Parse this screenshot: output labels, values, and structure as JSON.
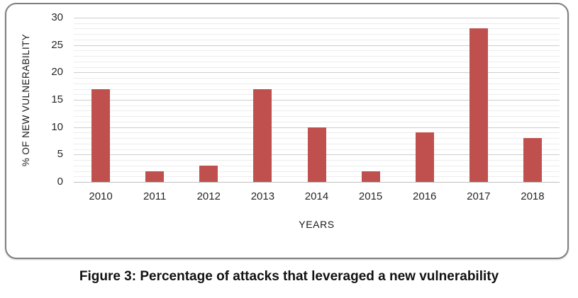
{
  "figure": {
    "caption": "Figure 3: Percentage of attacks that leveraged a new vulnerability"
  },
  "chart_data": {
    "type": "bar",
    "title": "",
    "categories": [
      "2010",
      "2011",
      "2012",
      "2013",
      "2014",
      "2015",
      "2016",
      "2017",
      "2018"
    ],
    "values": [
      17,
      2,
      3,
      17,
      10,
      2,
      9,
      28,
      8
    ],
    "xlabel": "YEARS",
    "ylabel": "% OF NEW VULNERABILITY",
    "ylim": [
      0,
      30
    ],
    "ytick_step": 5,
    "yticks": [
      0,
      5,
      10,
      15,
      20,
      25,
      30
    ],
    "minor_grid_step": 1,
    "grid": true,
    "legend": false,
    "colors": {
      "bar": "#c0504d",
      "major_grid": "#cdcdcd",
      "minor_grid": "#ececec",
      "axis_line": "#bfbfbf",
      "box_border": "#7f7f7f"
    }
  }
}
